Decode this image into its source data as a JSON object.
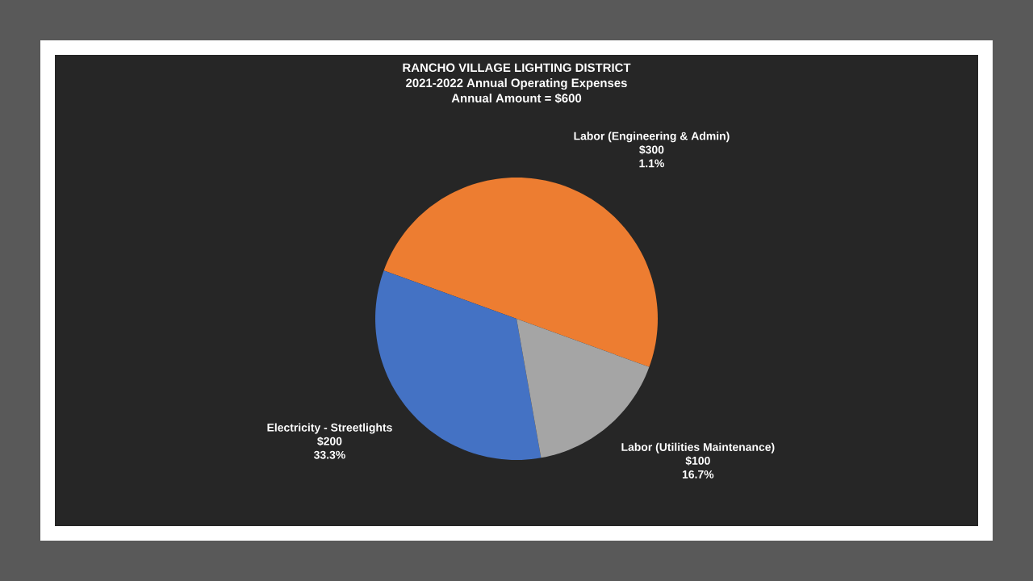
{
  "chart_data": {
    "type": "pie",
    "title": "RANCHO VILLAGE LIGHTING DISTRICT",
    "subtitle": "2021-2022 Annual Operating Expenses",
    "categories": [
      "Labor (Engineering & Admin)",
      "Electricity - Streetlights",
      "Labor (Utilities Maintenance)"
    ],
    "values": [
      300,
      200,
      100
    ],
    "colors": [
      "#ed7d31",
      "#4472c4",
      "#a5a5a5"
    ],
    "value_labels": [
      "$300",
      "$200",
      "$100"
    ],
    "annotations": [
      "1.1%",
      "33.3%",
      "16.7%",
      "Annual Amount = $600"
    ]
  }
}
